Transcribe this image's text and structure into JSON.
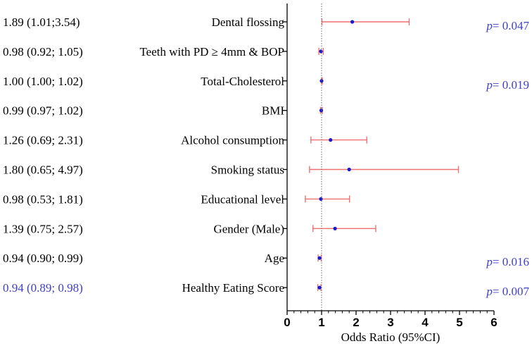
{
  "chart_data": {
    "type": "forest",
    "xlabel": "Odds Ratio (95%CI)",
    "xlim": [
      0,
      6
    ],
    "xticks": [
      "0",
      "1",
      "2",
      "3",
      "4",
      "5",
      "6"
    ],
    "reference_line": 1,
    "rows": [
      {
        "label": "Dental flossing",
        "ci_text": "1.89 (1.01;3.54)",
        "or": 1.89,
        "lower": 1.01,
        "upper": 3.54,
        "p": "p= 0.047",
        "highlight": false
      },
      {
        "label": "Teeth with PD ≥ 4mm & BOP",
        "ci_text": "0.98 (0.92; 1.05)",
        "or": 0.98,
        "lower": 0.92,
        "upper": 1.05,
        "p": "",
        "highlight": false
      },
      {
        "label": "Total-Cholesterol",
        "ci_text": "1.00 (1.00; 1.02)",
        "or": 1.0,
        "lower": 1.0,
        "upper": 1.02,
        "p": "p= 0.019",
        "highlight": false
      },
      {
        "label": "BMI",
        "ci_text": "0.99 (0.97; 1.02)",
        "or": 0.99,
        "lower": 0.97,
        "upper": 1.02,
        "p": "",
        "highlight": false
      },
      {
        "label": "Alcohol consumption",
        "ci_text": "1.26 (0.69; 2.31)",
        "or": 1.26,
        "lower": 0.69,
        "upper": 2.31,
        "p": "",
        "highlight": false
      },
      {
        "label": "Smoking status",
        "ci_text": "1.80 (0.65; 4.97)",
        "or": 1.8,
        "lower": 0.65,
        "upper": 4.97,
        "p": "",
        "highlight": false
      },
      {
        "label": "Educational level",
        "ci_text": "0.98 (0.53; 1.81)",
        "or": 0.98,
        "lower": 0.53,
        "upper": 1.81,
        "p": "",
        "highlight": false
      },
      {
        "label": "Gender (Male)",
        "ci_text": "1.39 (0.75; 2.57)",
        "or": 1.39,
        "lower": 0.75,
        "upper": 2.57,
        "p": "",
        "highlight": false
      },
      {
        "label": "Age",
        "ci_text": "0.94 (0.90; 0.99)",
        "or": 0.94,
        "lower": 0.9,
        "upper": 0.99,
        "p": "p= 0.016",
        "highlight": false
      },
      {
        "label": "Healthy Eating Score",
        "ci_text": "0.94 (0.89; 0.98)",
        "or": 0.94,
        "lower": 0.89,
        "upper": 0.98,
        "p": "p= 0.007",
        "highlight": true
      }
    ],
    "colors": {
      "text": "#000000",
      "highlight_text": "#4040c8",
      "pvalue": "#4040c8",
      "ci_line": "#f07070",
      "point": "#1a1acc",
      "axis": "#000000",
      "reference": "#666666"
    }
  }
}
